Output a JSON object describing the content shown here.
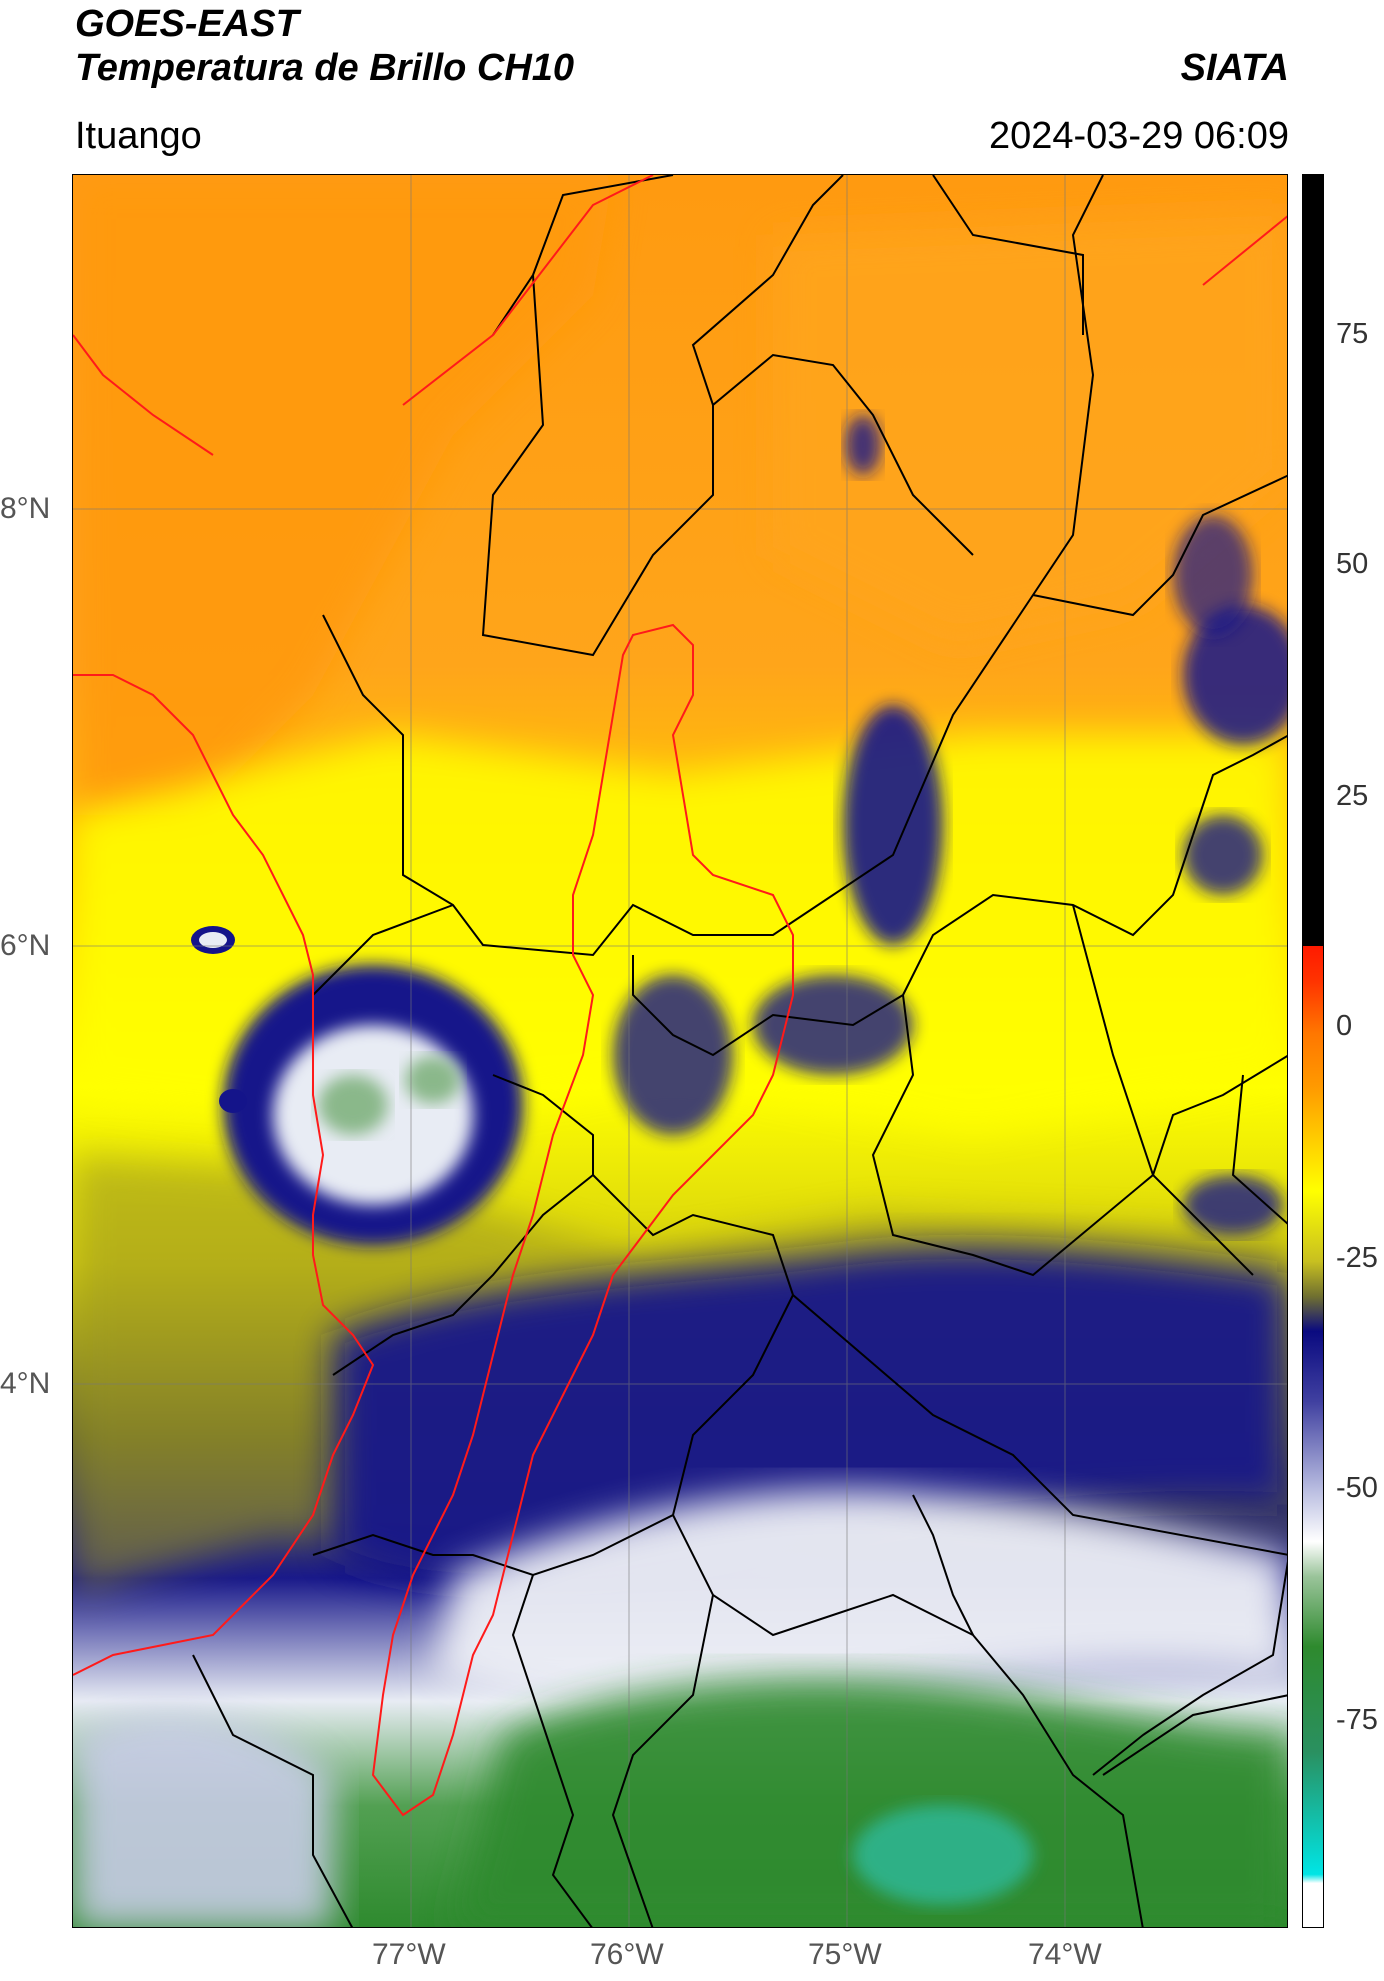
{
  "header": {
    "satellite": "GOES-EAST",
    "product": "Temperatura de Brillo CH10",
    "region": "Ituango",
    "agency": "SIATA",
    "datetime": "2024-03-29 06:09"
  },
  "axes": {
    "lon_ticks": [
      "77°W",
      "76°W",
      "75°W",
      "74°W"
    ],
    "lat_ticks": [
      "8°N",
      "6°N",
      "4°N"
    ]
  },
  "colorbar": {
    "ticks": [
      "75",
      "50",
      "25",
      "0",
      "-25",
      "-50",
      "-75"
    ],
    "range": [
      -90,
      90
    ],
    "colors": {
      "black": "#000000",
      "red": "#ff2a00",
      "orange": "#ff9a00",
      "yellow": "#ffff00",
      "olive": "#8a8a20",
      "navy": "#0a0a80",
      "white": "#ffffff",
      "green": "#2e8a2e",
      "cyan": "#00e5e5"
    }
  }
}
